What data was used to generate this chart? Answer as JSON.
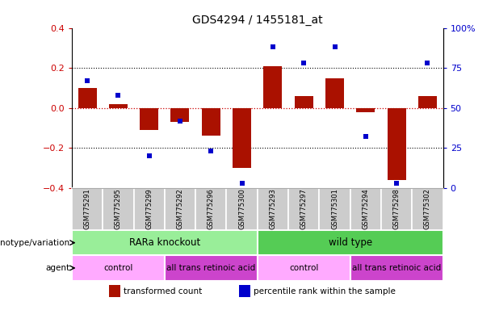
{
  "title": "GDS4294 / 1455181_at",
  "samples": [
    "GSM775291",
    "GSM775295",
    "GSM775299",
    "GSM775292",
    "GSM775296",
    "GSM775300",
    "GSM775293",
    "GSM775297",
    "GSM775301",
    "GSM775294",
    "GSM775298",
    "GSM775302"
  ],
  "bar_values": [
    0.1,
    0.02,
    -0.11,
    -0.07,
    -0.14,
    -0.3,
    0.21,
    0.06,
    0.15,
    -0.02,
    -0.36,
    0.06
  ],
  "dot_values_pct": [
    67,
    58,
    20,
    42,
    23,
    3,
    88,
    78,
    88,
    32,
    3,
    78
  ],
  "bar_color": "#aa1100",
  "dot_color": "#0000cc",
  "ylim_left": [
    -0.4,
    0.4
  ],
  "ylim_right": [
    0,
    100
  ],
  "yticks_left": [
    -0.4,
    -0.2,
    0.0,
    0.2,
    0.4
  ],
  "yticks_right": [
    0,
    25,
    50,
    75,
    100
  ],
  "ytick_labels_right": [
    "0",
    "25",
    "50",
    "75",
    "100%"
  ],
  "hline_zero_color": "#cc0000",
  "hline_zero_style": ":",
  "hline_dotted_color": "#000000",
  "hline_dotted_style": ":",
  "hline_dotted_vals": [
    0.2,
    -0.2
  ],
  "genotype_groups": [
    {
      "label": "RARa knockout",
      "start": 0,
      "end": 6,
      "color": "#99ee99"
    },
    {
      "label": "wild type",
      "start": 6,
      "end": 12,
      "color": "#55cc55"
    }
  ],
  "agent_groups": [
    {
      "label": "control",
      "start": 0,
      "end": 3,
      "color": "#ffaaff"
    },
    {
      "label": "all trans retinoic acid",
      "start": 3,
      "end": 6,
      "color": "#cc44cc"
    },
    {
      "label": "control",
      "start": 6,
      "end": 9,
      "color": "#ffaaff"
    },
    {
      "label": "all trans retinoic acid",
      "start": 9,
      "end": 12,
      "color": "#cc44cc"
    }
  ],
  "row_labels": [
    "genotype/variation",
    "agent"
  ],
  "legend_items": [
    {
      "label": "transformed count",
      "color": "#aa1100"
    },
    {
      "label": "percentile rank within the sample",
      "color": "#0000cc"
    }
  ],
  "bg_color": "#ffffff",
  "tick_label_color_left": "#cc0000",
  "tick_label_color_right": "#0000cc",
  "xtick_label_bg": "#cccccc"
}
